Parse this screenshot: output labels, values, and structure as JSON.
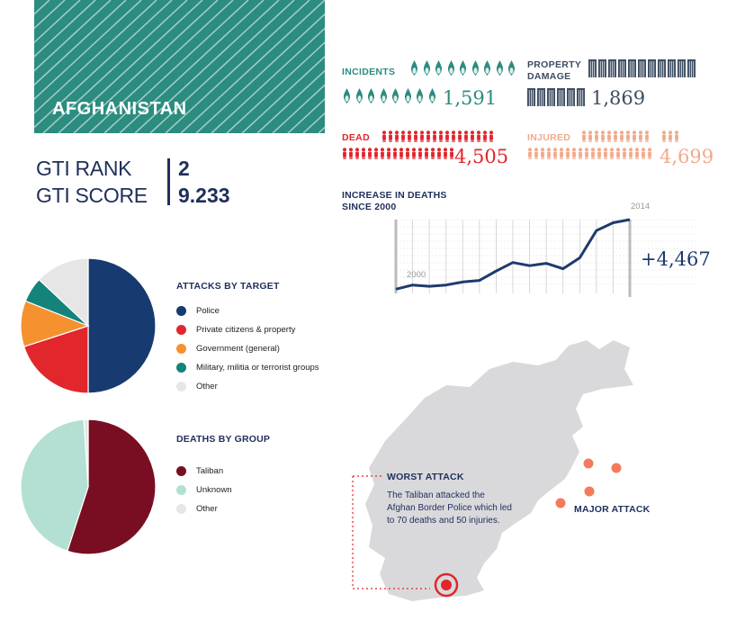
{
  "country": "AFGHANISTAN",
  "gti": {
    "rank_label": "GTI RANK",
    "rank_value": "2",
    "score_label": "GTI SCORE",
    "score_value": "9.233"
  },
  "stats": {
    "incidents": {
      "label": "INCIDENTS",
      "value": "1,591",
      "color": "#2b8c7f",
      "icon": "drop-icon"
    },
    "property_damage": {
      "label_line1": "PROPERTY",
      "label_line2": "DAMAGE",
      "value": "1,869",
      "color": "#3d4d61",
      "icon": "building-icon"
    },
    "dead": {
      "label": "DEAD",
      "value": "4,505",
      "color": "#e1262c",
      "icon": "person-icon"
    },
    "injured": {
      "label": "INJURED",
      "value": "4,699",
      "color": "#f2a98a",
      "icon": "person-icon"
    }
  },
  "increase_chart": {
    "title_line1": "INCREASE IN DEATHS",
    "title_line2": "SINCE 2000",
    "start_label": "2000",
    "end_label": "2014",
    "change_label": "+4,467",
    "color": "#1e3a6e"
  },
  "chart_data": [
    {
      "type": "line",
      "title": "INCREASE IN DEATHS SINCE 2000",
      "x": [
        2000,
        2001,
        2002,
        2003,
        2004,
        2005,
        2006,
        2007,
        2008,
        2009,
        2010,
        2011,
        2012,
        2013,
        2014
      ],
      "series": [
        {
          "values": [
            38,
            305,
            225,
            305,
            500,
            600,
            1200,
            1750,
            1550,
            1700,
            1350,
            2050,
            3800,
            4300,
            4505
          ]
        }
      ],
      "ylim": [
        0,
        4505
      ],
      "grid": true
    },
    {
      "type": "pie",
      "title": "ATTACKS BY TARGET",
      "categories": [
        "Police",
        "Private citizens & property",
        "Government (general)",
        "Military, militia or terrorist groups",
        "Other"
      ],
      "values": [
        50,
        20,
        11,
        6,
        13
      ],
      "colors": [
        "#173a70",
        "#e1262c",
        "#f5922f",
        "#14837a",
        "#e6e6e6"
      ]
    },
    {
      "type": "pie",
      "title": "DEATHS BY GROUP",
      "categories": [
        "Taliban",
        "Unknown",
        "Other"
      ],
      "values": [
        55,
        44,
        1
      ],
      "colors": [
        "#790e22",
        "#b3e0d2",
        "#e6e6e6"
      ]
    }
  ],
  "attacks_by_target": {
    "title": "ATTACKS BY TARGET",
    "legend": [
      {
        "label": "Police",
        "color": "#173a70"
      },
      {
        "label": "Private citizens & property",
        "color": "#e1262c"
      },
      {
        "label": "Government (general)",
        "color": "#f5922f"
      },
      {
        "label": "Military, militia or terrorist groups",
        "color": "#14837a"
      },
      {
        "label": "Other",
        "color": "#e6e6e6"
      }
    ]
  },
  "deaths_by_group": {
    "title": "DEATHS BY GROUP",
    "legend": [
      {
        "label": "Taliban",
        "color": "#790e22"
      },
      {
        "label": "Unknown",
        "color": "#b3e0d2"
      },
      {
        "label": "Other",
        "color": "#e6e6e6"
      }
    ]
  },
  "map": {
    "worst_attack_title": "WORST ATTACK",
    "worst_attack_line1": "The Taliban attacked the",
    "worst_attack_line2": "Afghan Border Police which led",
    "worst_attack_line3": "to 70 deaths and 50 injuries.",
    "major_attack_label": "MAJOR ATTACK",
    "land_color": "#d9d9dc",
    "marker_color": "#f47b5a",
    "worst_color": "#e1262c"
  }
}
